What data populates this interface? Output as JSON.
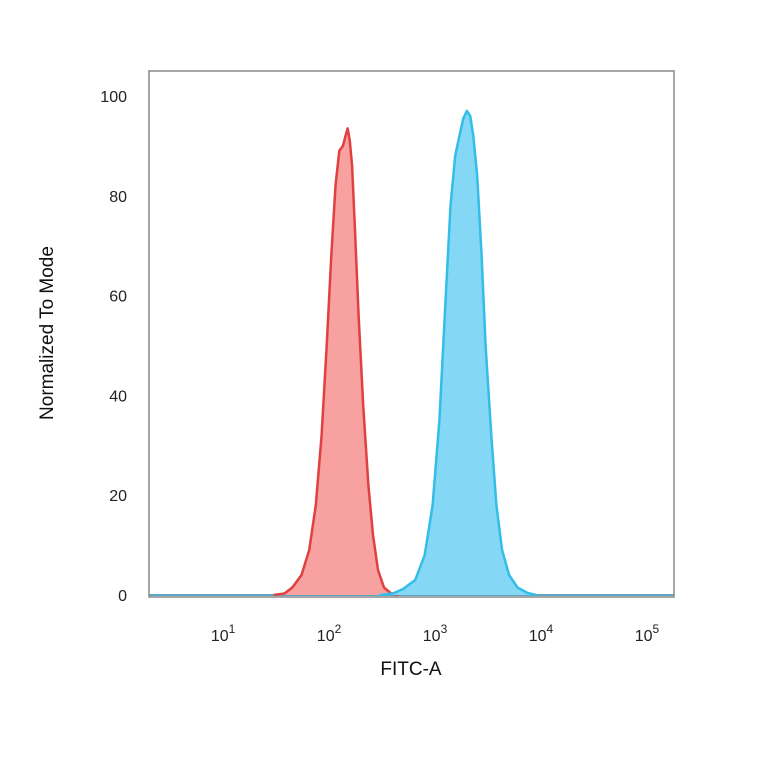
{
  "chart_data": {
    "type": "area",
    "title": "",
    "xlabel": "FITC-A",
    "ylabel": "Normalized To Mode",
    "x_scale": "log",
    "xlim": [
      2,
      180000
    ],
    "ylim": [
      0,
      105
    ],
    "x_ticks": [
      {
        "base": "10",
        "exp": "1",
        "value": 10
      },
      {
        "base": "10",
        "exp": "2",
        "value": 100
      },
      {
        "base": "10",
        "exp": "3",
        "value": 1000
      },
      {
        "base": "10",
        "exp": "4",
        "value": 10000
      },
      {
        "base": "10",
        "exp": "5",
        "value": 100000
      }
    ],
    "y_ticks": [
      0,
      20,
      40,
      60,
      80,
      100
    ],
    "grid": false,
    "legend": "none",
    "series": [
      {
        "stroke": "#e0403f",
        "fill": "#f7a1a1",
        "points": [
          [
            30,
            0
          ],
          [
            38,
            0.3
          ],
          [
            45,
            1.5
          ],
          [
            55,
            4
          ],
          [
            65,
            9
          ],
          [
            75,
            18
          ],
          [
            85,
            32
          ],
          [
            95,
            50
          ],
          [
            105,
            68
          ],
          [
            115,
            82
          ],
          [
            125,
            89
          ],
          [
            135,
            90
          ],
          [
            143,
            92
          ],
          [
            150,
            93.5
          ],
          [
            157,
            91
          ],
          [
            165,
            86
          ],
          [
            175,
            74
          ],
          [
            190,
            56
          ],
          [
            210,
            38
          ],
          [
            235,
            22
          ],
          [
            260,
            12
          ],
          [
            290,
            5
          ],
          [
            330,
            1.5
          ],
          [
            380,
            0.4
          ],
          [
            450,
            0
          ]
        ]
      },
      {
        "stroke": "#33bde8",
        "fill": "#84d8f5",
        "points": [
          [
            300,
            0
          ],
          [
            400,
            0.3
          ],
          [
            500,
            1.2
          ],
          [
            650,
            3
          ],
          [
            800,
            8
          ],
          [
            950,
            18
          ],
          [
            1100,
            35
          ],
          [
            1250,
            58
          ],
          [
            1400,
            78
          ],
          [
            1550,
            88
          ],
          [
            1700,
            92
          ],
          [
            1850,
            95.5
          ],
          [
            2000,
            97
          ],
          [
            2150,
            96
          ],
          [
            2300,
            92
          ],
          [
            2500,
            84
          ],
          [
            2750,
            68
          ],
          [
            3000,
            50
          ],
          [
            3400,
            32
          ],
          [
            3800,
            18
          ],
          [
            4300,
            9
          ],
          [
            5000,
            4
          ],
          [
            6000,
            1.5
          ],
          [
            7500,
            0.4
          ],
          [
            9000,
            0
          ]
        ]
      }
    ]
  }
}
